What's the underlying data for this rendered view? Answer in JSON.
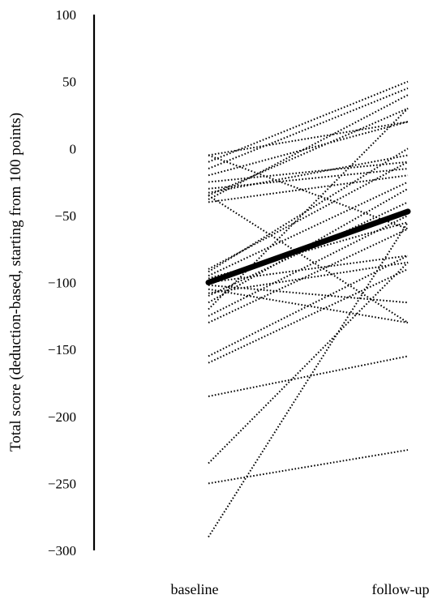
{
  "chart_data": {
    "type": "line",
    "title": "",
    "xlabel": "",
    "ylabel": "Total score (deduction-based, starting from 100 points)",
    "categories": [
      "baseline",
      "follow-up"
    ],
    "ylim": [
      -300,
      100
    ],
    "yticks": [
      100,
      50,
      0,
      -50,
      -100,
      -150,
      -200,
      -250,
      -300
    ],
    "ytick_labels": [
      "100",
      "50",
      "0",
      "−50",
      "−100",
      "−150",
      "−200",
      "−250",
      "−300"
    ],
    "grid": false,
    "legend": "none",
    "individual_series": [
      {
        "values": [
          -5,
          20
        ]
      },
      {
        "values": [
          -10,
          50
        ]
      },
      {
        "values": [
          -15,
          45
        ]
      },
      {
        "values": [
          -20,
          20
        ]
      },
      {
        "values": [
          -25,
          -10
        ]
      },
      {
        "values": [
          -30,
          -15
        ]
      },
      {
        "values": [
          -33,
          -5
        ]
      },
      {
        "values": [
          -35,
          30
        ]
      },
      {
        "values": [
          -38,
          40
        ]
      },
      {
        "values": [
          -40,
          -20
        ]
      },
      {
        "values": [
          -5,
          -60
        ]
      },
      {
        "values": [
          -35,
          -130
        ]
      },
      {
        "values": [
          -90,
          -10
        ]
      },
      {
        "values": [
          -92,
          0
        ]
      },
      {
        "values": [
          -95,
          -25
        ]
      },
      {
        "values": [
          -97,
          -55
        ]
      },
      {
        "values": [
          -100,
          -80
        ]
      },
      {
        "values": [
          -102,
          -115
        ]
      },
      {
        "values": [
          -105,
          -130
        ]
      },
      {
        "values": [
          -108,
          -85
        ]
      },
      {
        "values": [
          -110,
          -40
        ]
      },
      {
        "values": [
          -115,
          -30
        ]
      },
      {
        "values": [
          -120,
          30
        ]
      },
      {
        "values": [
          -125,
          -50
        ]
      },
      {
        "values": [
          -130,
          -60
        ]
      },
      {
        "values": [
          -155,
          -80
        ]
      },
      {
        "values": [
          -160,
          -90
        ]
      },
      {
        "values": [
          -185,
          -155
        ]
      },
      {
        "values": [
          -235,
          -85
        ]
      },
      {
        "values": [
          -250,
          -225
        ]
      },
      {
        "values": [
          -290,
          -55
        ]
      }
    ],
    "mean_series": {
      "values": [
        -100,
        -47
      ]
    },
    "colors": {
      "lines": "#000000",
      "mean": "#000000"
    }
  }
}
